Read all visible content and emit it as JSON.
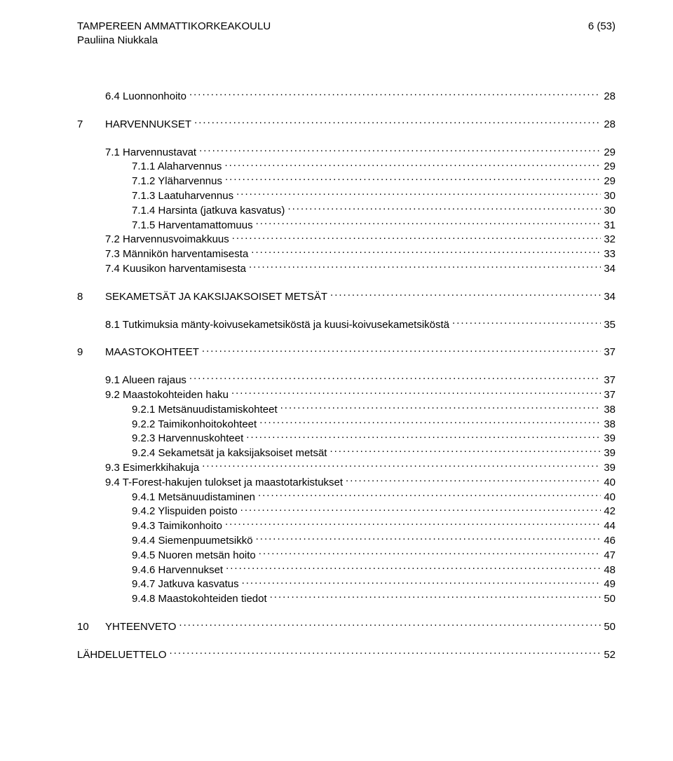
{
  "header": {
    "institution": "TAMPEREEN AMMATTIKORKEAKOULU",
    "author": "Pauliina Niukkala",
    "page_indicator": "6 (53)"
  },
  "toc": [
    {
      "level": 1,
      "num": "",
      "title": "6.4 Luonnonhoito",
      "page": "28"
    },
    {
      "blank": true
    },
    {
      "level": 0,
      "num": "7",
      "title": "HARVENNUKSET",
      "page": "28"
    },
    {
      "blank": true
    },
    {
      "level": 1,
      "num": "",
      "title": "7.1 Harvennustavat",
      "page": "29"
    },
    {
      "level": 2,
      "num": "",
      "title": "7.1.1 Alaharvennus",
      "page": "29"
    },
    {
      "level": 2,
      "num": "",
      "title": "7.1.2 Yläharvennus",
      "page": "29"
    },
    {
      "level": 2,
      "num": "",
      "title": "7.1.3 Laatuharvennus",
      "page": "30"
    },
    {
      "level": 2,
      "num": "",
      "title": "7.1.4 Harsinta (jatkuva kasvatus)",
      "page": "30"
    },
    {
      "level": 2,
      "num": "",
      "title": "7.1.5 Harventamattomuus",
      "page": "31"
    },
    {
      "level": 1,
      "num": "",
      "title": "7.2 Harvennusvoimakkuus",
      "page": "32"
    },
    {
      "level": 1,
      "num": "",
      "title": "7.3 Männikön harventamisesta",
      "page": "33"
    },
    {
      "level": 1,
      "num": "",
      "title": "7.4 Kuusikon harventamisesta",
      "page": "34"
    },
    {
      "blank": true
    },
    {
      "level": 0,
      "num": "8",
      "title": "SEKAMETSÄT JA KAKSIJAKSOISET METSÄT",
      "page": "34"
    },
    {
      "blank": true
    },
    {
      "level": 1,
      "num": "",
      "title": "8.1 Tutkimuksia mänty-koivusekametsiköstä ja kuusi-koivusekametsiköstä",
      "page": "35"
    },
    {
      "blank": true
    },
    {
      "level": 0,
      "num": "9",
      "title": "MAASTOKOHTEET",
      "page": "37"
    },
    {
      "blank": true
    },
    {
      "level": 1,
      "num": "",
      "title": "9.1 Alueen rajaus",
      "page": "37"
    },
    {
      "level": 1,
      "num": "",
      "title": "9.2 Maastokohteiden haku",
      "page": "37"
    },
    {
      "level": 2,
      "num": "",
      "title": "9.2.1 Metsänuudistamiskohteet",
      "page": "38"
    },
    {
      "level": 2,
      "num": "",
      "title": "9.2.2 Taimikonhoitokohteet",
      "page": "38"
    },
    {
      "level": 2,
      "num": "",
      "title": "9.2.3 Harvennuskohteet",
      "page": "39"
    },
    {
      "level": 2,
      "num": "",
      "title": "9.2.4 Sekametsät ja kaksijaksoiset metsät",
      "page": "39"
    },
    {
      "level": 1,
      "num": "",
      "title": "9.3 Esimerkkihakuja",
      "page": "39"
    },
    {
      "level": 1,
      "num": "",
      "title": "9.4 T-Forest-hakujen tulokset ja maastotarkistukset",
      "page": "40"
    },
    {
      "level": 2,
      "num": "",
      "title": "9.4.1 Metsänuudistaminen",
      "page": "40"
    },
    {
      "level": 2,
      "num": "",
      "title": "9.4.2 Ylispuiden poisto",
      "page": "42"
    },
    {
      "level": 2,
      "num": "",
      "title": "9.4.3 Taimikonhoito",
      "page": "44"
    },
    {
      "level": 2,
      "num": "",
      "title": "9.4.4 Siemenpuumetsikkö",
      "page": "46"
    },
    {
      "level": 2,
      "num": "",
      "title": "9.4.5 Nuoren metsän hoito",
      "page": "47"
    },
    {
      "level": 2,
      "num": "",
      "title": "9.4.6 Harvennukset",
      "page": "48"
    },
    {
      "level": 2,
      "num": "",
      "title": "9.4.7 Jatkuva kasvatus",
      "page": "49"
    },
    {
      "level": 2,
      "num": "",
      "title": "9.4.8 Maastokohteiden tiedot",
      "page": "50"
    },
    {
      "blank": true
    },
    {
      "level": 0,
      "num": "10",
      "title": "YHTEENVETO",
      "page": "50"
    },
    {
      "blank": true
    },
    {
      "level": 0,
      "num": "",
      "title": "LÄHDELUETTELO",
      "page": "52",
      "nonum": true
    }
  ]
}
